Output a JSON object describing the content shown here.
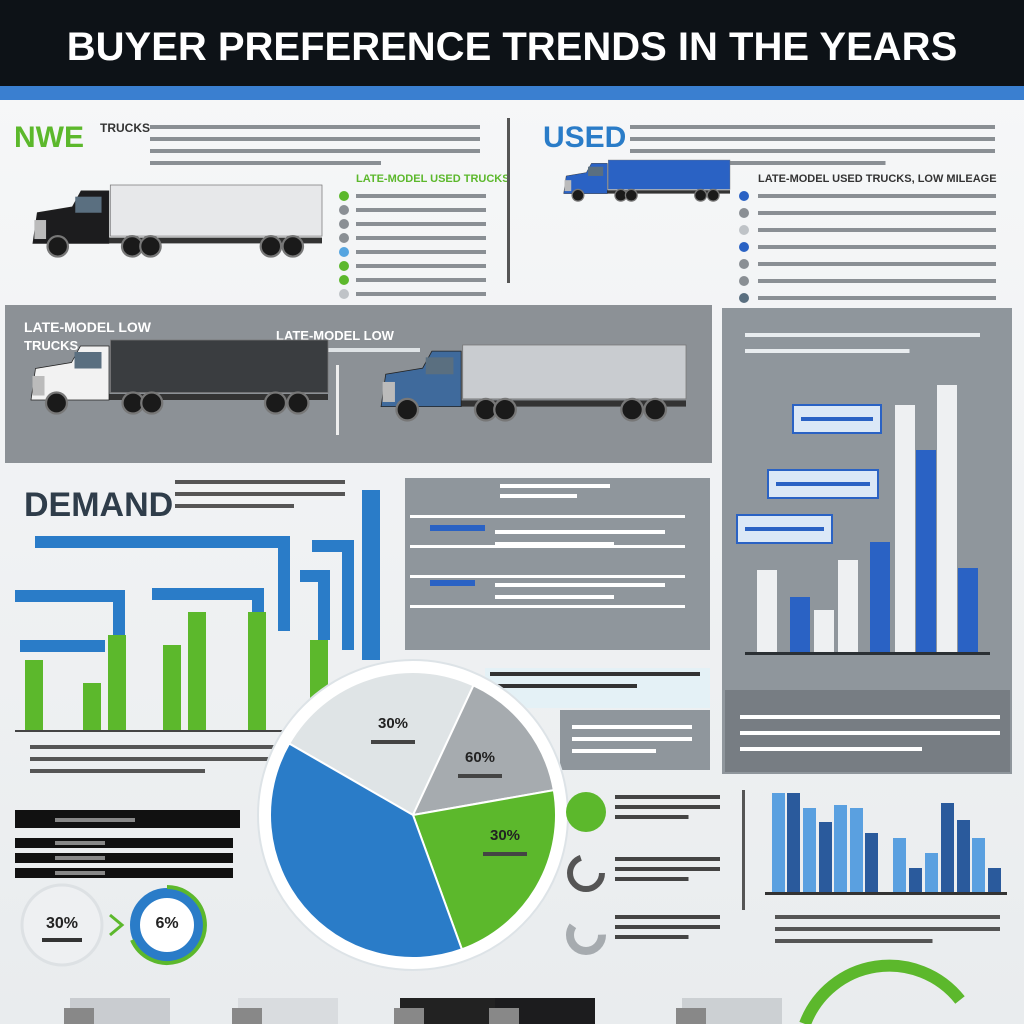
{
  "header": {
    "title": "BUYER PREFERENCE TRENDS IN THE YEARS"
  },
  "new_section": {
    "label": "NWE",
    "sublabel": "TRUCKS",
    "list_title": "LATE-MODEL USED TRUCKS"
  },
  "used_section": {
    "label": "USED",
    "list_title": "LATE-MODEL USED TRUCKS, LOW MILEAGE"
  },
  "banner": {
    "left_title": "LATE-MODEL LOW",
    "left_subtitle": "TRUCKS",
    "middle_title": "LATE-MODEL LOW"
  },
  "demand": {
    "title": "DEMAND"
  },
  "pie": {
    "labels": [
      "30%",
      "60%",
      "30%"
    ]
  },
  "donuts": {
    "labels": [
      "30%",
      "6%"
    ]
  }
}
